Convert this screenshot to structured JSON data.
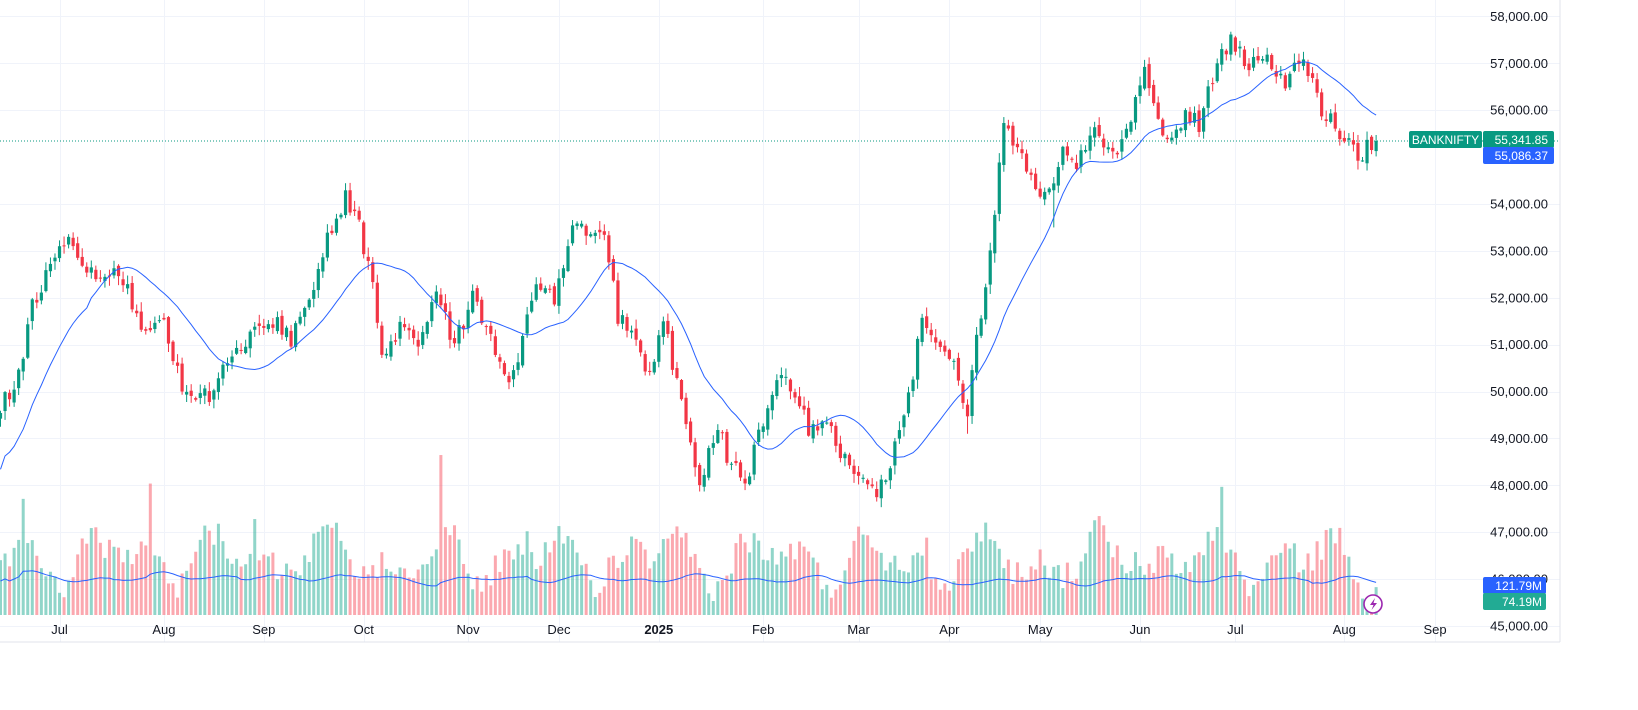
{
  "chart_data": {
    "type": "candlestick",
    "symbol": "BANKNIFTY",
    "last_price_label": "55,341.85",
    "ma_price_label": "55,086.37",
    "volume_label": "121.79M",
    "volume_ma_label": "74.19M",
    "y_ticks": [
      "58,000.00",
      "57,000.00",
      "56,000.00",
      "54,000.00",
      "53,000.00",
      "52,000.00",
      "51,000.00",
      "50,000.00",
      "49,000.00",
      "48,000.00",
      "47,000.00",
      "46,000.00",
      "45,000.00"
    ],
    "y_tick_values": [
      58000,
      57000,
      56000,
      54000,
      53000,
      52000,
      51000,
      50000,
      49000,
      48000,
      47000,
      46000,
      45000
    ],
    "ylim": [
      45000,
      58350
    ],
    "x_ticks": [
      {
        "label": "Jul",
        "index": 13,
        "bold": false
      },
      {
        "label": "Aug",
        "index": 36,
        "bold": false
      },
      {
        "label": "Sep",
        "index": 58,
        "bold": false
      },
      {
        "label": "Oct",
        "index": 80,
        "bold": false
      },
      {
        "label": "Nov",
        "index": 103,
        "bold": false
      },
      {
        "label": "Dec",
        "index": 123,
        "bold": false
      },
      {
        "label": "2025",
        "index": 145,
        "bold": true
      },
      {
        "label": "Feb",
        "index": 168,
        "bold": false
      },
      {
        "label": "Mar",
        "index": 189,
        "bold": false
      },
      {
        "label": "Apr",
        "index": 209,
        "bold": false
      },
      {
        "label": "May",
        "index": 229,
        "bold": false
      },
      {
        "label": "Jun",
        "index": 251,
        "bold": false
      },
      {
        "label": "Jul",
        "index": 272,
        "bold": false
      },
      {
        "label": "Aug",
        "index": 296,
        "bold": false
      },
      {
        "label": "Sep",
        "index": 316,
        "bold": false
      }
    ],
    "keypoints": [
      {
        "i": 0,
        "c": 49700
      },
      {
        "i": 4,
        "c": 50300
      },
      {
        "i": 7,
        "c": 51800
      },
      {
        "i": 11,
        "c": 52800
      },
      {
        "i": 16,
        "c": 53200
      },
      {
        "i": 20,
        "c": 52500
      },
      {
        "i": 26,
        "c": 52600
      },
      {
        "i": 32,
        "c": 51200
      },
      {
        "i": 36,
        "c": 51600
      },
      {
        "i": 40,
        "c": 50000
      },
      {
        "i": 46,
        "c": 49900
      },
      {
        "i": 52,
        "c": 50900
      },
      {
        "i": 60,
        "c": 51500
      },
      {
        "i": 64,
        "c": 51100
      },
      {
        "i": 68,
        "c": 52000
      },
      {
        "i": 72,
        "c": 53200
      },
      {
        "i": 76,
        "c": 54200
      },
      {
        "i": 79,
        "c": 53500
      },
      {
        "i": 82,
        "c": 52300
      },
      {
        "i": 84,
        "c": 50700
      },
      {
        "i": 88,
        "c": 51400
      },
      {
        "i": 92,
        "c": 51000
      },
      {
        "i": 96,
        "c": 52100
      },
      {
        "i": 100,
        "c": 51000
      },
      {
        "i": 104,
        "c": 52000
      },
      {
        "i": 108,
        "c": 51200
      },
      {
        "i": 112,
        "c": 50200
      },
      {
        "i": 114,
        "c": 50800
      },
      {
        "i": 118,
        "c": 52400
      },
      {
        "i": 122,
        "c": 52000
      },
      {
        "i": 126,
        "c": 53600
      },
      {
        "i": 130,
        "c": 53400
      },
      {
        "i": 133,
        "c": 53500
      },
      {
        "i": 136,
        "c": 51600
      },
      {
        "i": 139,
        "c": 51200
      },
      {
        "i": 143,
        "c": 50400
      },
      {
        "i": 146,
        "c": 51600
      },
      {
        "i": 150,
        "c": 49700
      },
      {
        "i": 154,
        "c": 48100
      },
      {
        "i": 158,
        "c": 49300
      },
      {
        "i": 160,
        "c": 48600
      },
      {
        "i": 164,
        "c": 48000
      },
      {
        "i": 168,
        "c": 49400
      },
      {
        "i": 172,
        "c": 50400
      },
      {
        "i": 174,
        "c": 50100
      },
      {
        "i": 178,
        "c": 49200
      },
      {
        "i": 182,
        "c": 49400
      },
      {
        "i": 186,
        "c": 48500
      },
      {
        "i": 190,
        "c": 48100
      },
      {
        "i": 193,
        "c": 47900
      },
      {
        "i": 196,
        "c": 48400
      },
      {
        "i": 200,
        "c": 49800
      },
      {
        "i": 203,
        "c": 51600
      },
      {
        "i": 206,
        "c": 51200
      },
      {
        "i": 210,
        "c": 50600
      },
      {
        "i": 213,
        "c": 49500
      },
      {
        "i": 214,
        "c": 50400
      },
      {
        "i": 218,
        "c": 53000
      },
      {
        "i": 221,
        "c": 55600
      },
      {
        "i": 224,
        "c": 55100
      },
      {
        "i": 228,
        "c": 54400
      },
      {
        "i": 231,
        "c": 54200
      },
      {
        "i": 234,
        "c": 55200
      },
      {
        "i": 237,
        "c": 54800
      },
      {
        "i": 241,
        "c": 55600
      },
      {
        "i": 245,
        "c": 55000
      },
      {
        "i": 249,
        "c": 55700
      },
      {
        "i": 252,
        "c": 57000
      },
      {
        "i": 254,
        "c": 56200
      },
      {
        "i": 257,
        "c": 55200
      },
      {
        "i": 261,
        "c": 55900
      },
      {
        "i": 264,
        "c": 55700
      },
      {
        "i": 268,
        "c": 57000
      },
      {
        "i": 271,
        "c": 57500
      },
      {
        "i": 275,
        "c": 56900
      },
      {
        "i": 279,
        "c": 57200
      },
      {
        "i": 283,
        "c": 56500
      },
      {
        "i": 287,
        "c": 57200
      },
      {
        "i": 291,
        "c": 56000
      },
      {
        "i": 295,
        "c": 55500
      },
      {
        "i": 299,
        "c": 55000
      },
      {
        "i": 301,
        "c": 55200
      },
      {
        "i": 303,
        "c": 55341.85
      }
    ]
  }
}
